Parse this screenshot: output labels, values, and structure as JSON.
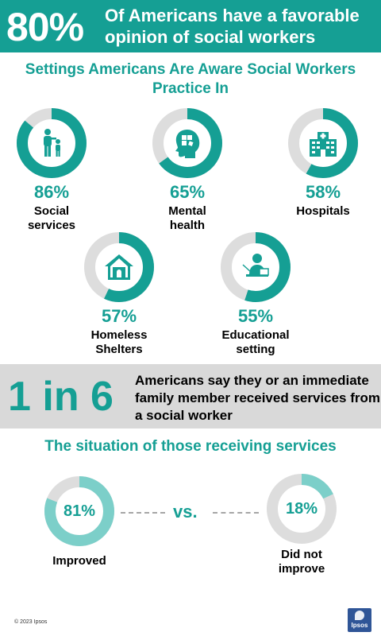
{
  "header": {
    "big_stat": "80%",
    "text": "Of Americans have a favorable opinion of social workers"
  },
  "settings_title": "Settings Americans Are Aware Social Workers Practice In",
  "band": {
    "big_stat": "1 in 6",
    "text": "Americans say they or an immediate family member received services from a social worker"
  },
  "situation_title": "The situation of those receiving services",
  "vs_label": "vs.",
  "footer": {
    "copyright": "© 2023 Ipsos",
    "logo_text": "Ipsos"
  },
  "colors": {
    "teal": "#159f94",
    "light_teal": "#7ccfc9",
    "ring_gray": "#dddddd",
    "band_gray": "#d9d9d9",
    "logo_blue": "#2f5597"
  },
  "chart_data": [
    {
      "type": "pie",
      "title": "Settings Americans Are Aware Social Workers Practice In",
      "categories": [
        "Social services",
        "Mental health",
        "Hospitals",
        "Homeless Shelters",
        "Educational setting"
      ],
      "values": [
        86,
        65,
        58,
        57,
        55
      ],
      "value_labels": [
        "86%",
        "65%",
        "58%",
        "57%",
        "55%"
      ],
      "icons": [
        "family-icon",
        "head-puzzle-icon",
        "hospital-icon",
        "house-icon",
        "teacher-icon"
      ],
      "label_lines": [
        [
          "Social",
          "services"
        ],
        [
          "Mental",
          "health"
        ],
        [
          "Hospitals"
        ],
        [
          "Homeless",
          "Shelters"
        ],
        [
          "Educational",
          "setting"
        ]
      ]
    },
    {
      "type": "pie",
      "title": "The situation of those receiving services",
      "categories": [
        "Improved",
        "Did not improve"
      ],
      "values": [
        81,
        18
      ],
      "value_labels": [
        "81%",
        "18%"
      ],
      "label_lines": [
        [
          "Improved"
        ],
        [
          "Did not",
          "improve"
        ]
      ]
    }
  ]
}
